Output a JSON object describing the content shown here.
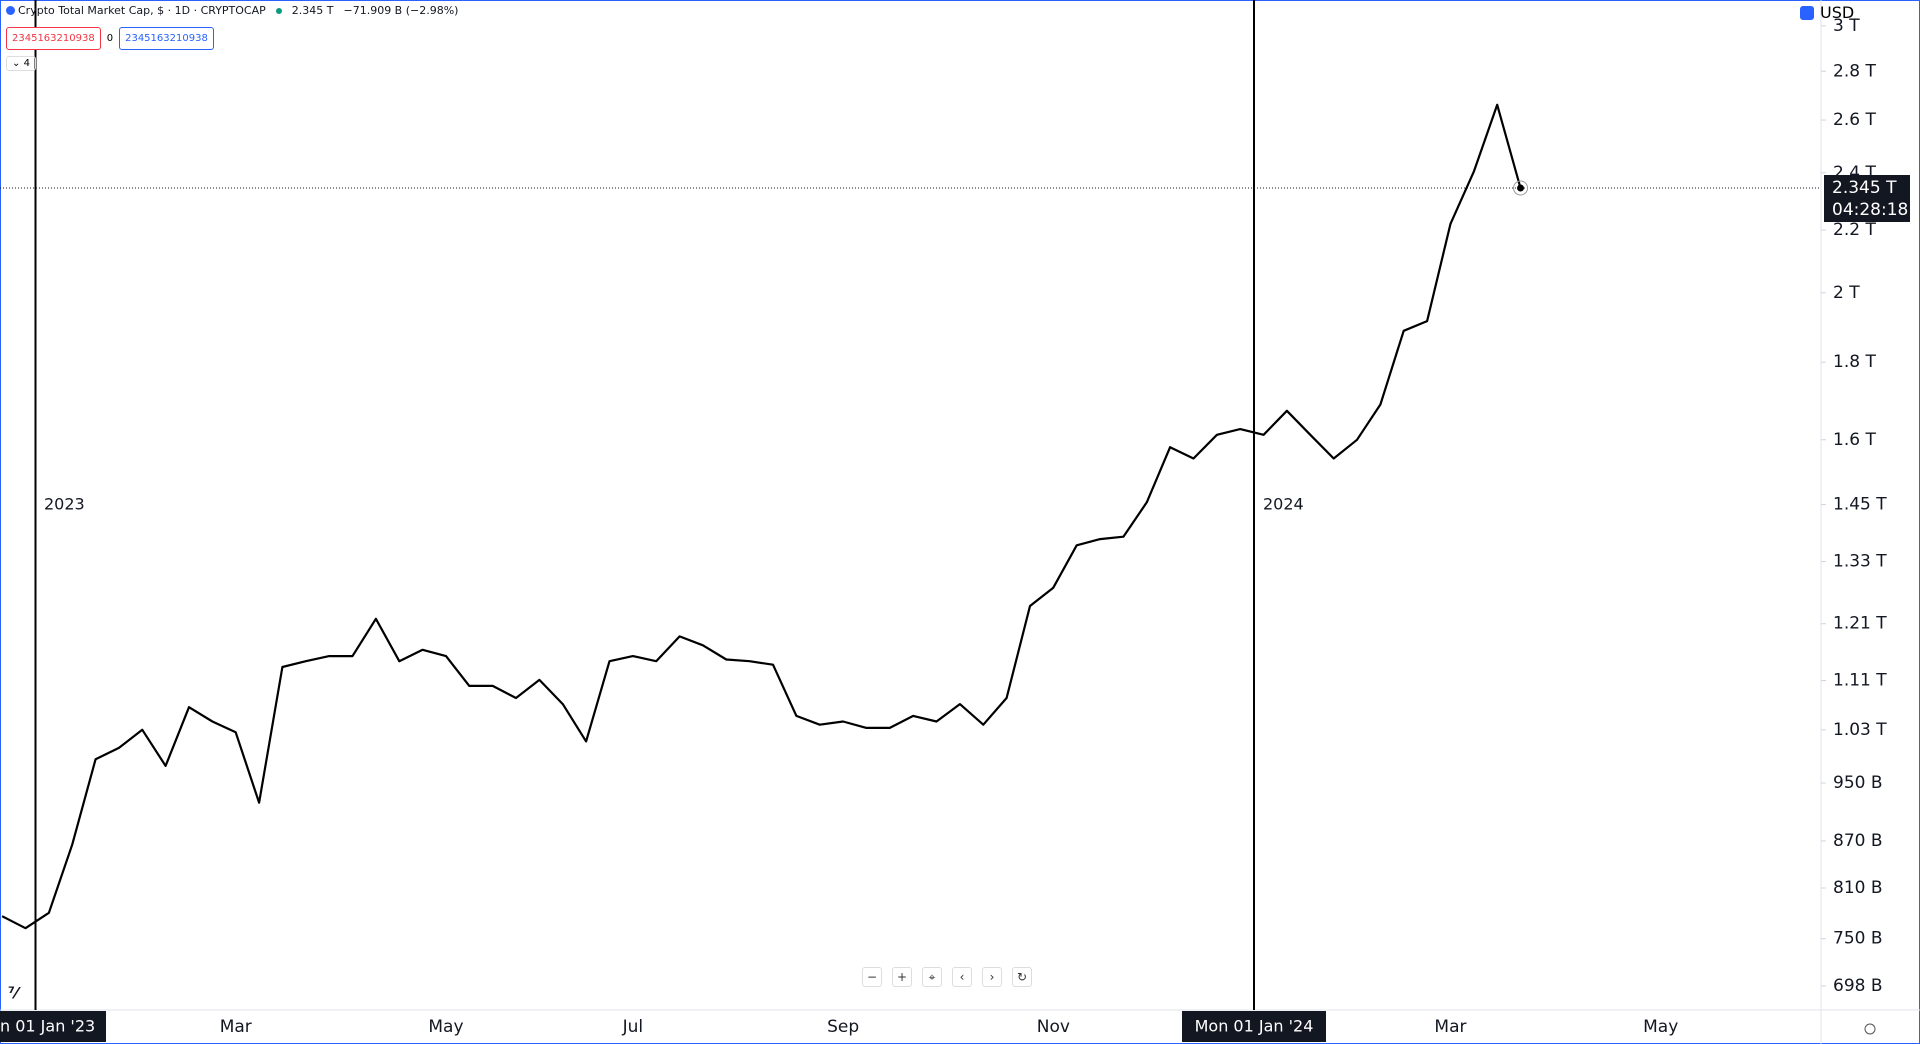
{
  "header": {
    "symbol": "Crypto Total Market Cap, $ · 1D · CRYPTOCAP",
    "last": "2.345 T",
    "change": "−71.909 B (−2.98%)",
    "button_sell": "2345163210938",
    "spread": "0",
    "button_buy": "2345163210938",
    "indicators": "4",
    "currency": "USD",
    "price_label": "2.345 T",
    "countdown": "04:28:18"
  },
  "chart_data": {
    "type": "line",
    "log_y": true,
    "grid": false,
    "annotations": [
      "2023",
      "2024"
    ],
    "crosshair_labels": [
      "n 01 Jan '23",
      "Mon 01 Jan '24"
    ],
    "categories": [
      null,
      null,
      null,
      null,
      null,
      null,
      null,
      null,
      null,
      null,
      "Mar",
      null,
      null,
      null,
      null,
      null,
      null,
      null,
      null,
      "May",
      null,
      null,
      null,
      null,
      null,
      null,
      null,
      "Jul",
      null,
      null,
      null,
      null,
      null,
      null,
      null,
      null,
      "Sep",
      null,
      null,
      null,
      null,
      null,
      null,
      null,
      null,
      "Nov",
      null,
      null,
      null,
      null,
      null,
      null,
      null,
      null,
      null,
      null,
      null,
      null,
      null,
      null,
      null,
      null,
      "Mar",
      null,
      null,
      null,
      null,
      null,
      null,
      null,
      null,
      "May",
      null,
      null,
      null,
      null,
      null,
      null
    ],
    "series": [
      {
        "name": "Crypto Total Market Cap",
        "color": "#000000",
        "values": [
          776,
          762,
          780,
          865,
          985,
          1002,
          1030,
          975,
          1066,
          1043,
          1026,
          922,
          1133,
          1143,
          1152,
          1152,
          1219,
          1143,
          1163,
          1152,
          1101,
          1101,
          1081,
          1111,
          1071,
          1012,
          1143,
          1152,
          1143,
          1187,
          1171,
          1146,
          1143,
          1137,
          1052,
          1038,
          1043,
          1033,
          1033,
          1052,
          1043,
          1071,
          1038,
          1081,
          1243,
          1278,
          1363,
          1376,
          1381,
          1455,
          1582,
          1555,
          1612,
          1626,
          1612,
          1672,
          1612,
          1555,
          1600,
          1688,
          1888,
          1916,
          2221,
          2404,
          2661,
          2345,
          null,
          null,
          null,
          null,
          null,
          null,
          null,
          null,
          null,
          null,
          null,
          null
        ]
      }
    ],
    "ylim": [
      673,
      3120
    ],
    "yticks": [
      {
        "value": 3000,
        "label": "3 T"
      },
      {
        "value": 2800,
        "label": "2.8 T"
      },
      {
        "value": 2600,
        "label": "2.6 T"
      },
      {
        "value": 2400,
        "label": "2.4 T"
      },
      {
        "value": 2200,
        "label": "2.2 T"
      },
      {
        "value": 2000,
        "label": "2 T"
      },
      {
        "value": 1800,
        "label": "1.8 T"
      },
      {
        "value": 1600,
        "label": "1.6 T"
      },
      {
        "value": 1450,
        "label": "1.45 T"
      },
      {
        "value": 1330,
        "label": "1.33 T"
      },
      {
        "value": 1210,
        "label": "1.21 T"
      },
      {
        "value": 1110,
        "label": "1.11 T"
      },
      {
        "value": 1030,
        "label": "1.03 T"
      },
      {
        "value": 950,
        "label": "950 B"
      },
      {
        "value": 870,
        "label": "870 B"
      },
      {
        "value": 810,
        "label": "810 B"
      },
      {
        "value": 750,
        "label": "750 B"
      },
      {
        "value": 698,
        "label": "698 B"
      }
    ]
  }
}
